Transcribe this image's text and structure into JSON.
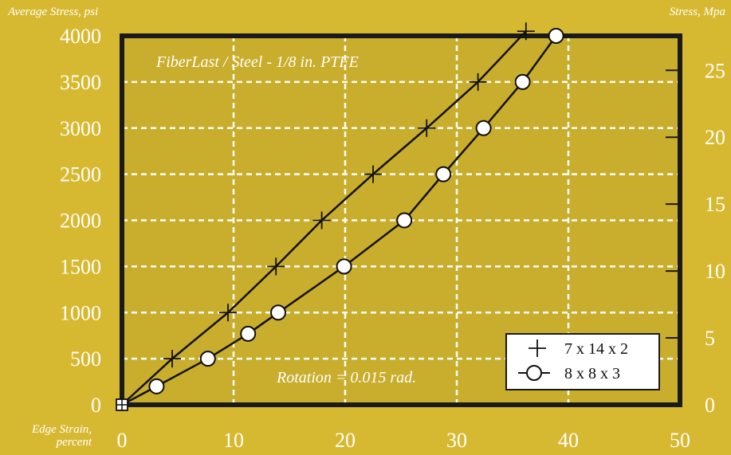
{
  "chart_data": {
    "type": "line",
    "title": "",
    "annotation_top": "FiberLast / Steel - 1/8 in. PTFE",
    "annotation_bottom": "Rotation = 0.015 rad.",
    "ylabel_left": "Average Stress, psi",
    "ylabel_right": "Stress, Mpa",
    "xlabel_line1": "Edge Strain,",
    "xlabel_line2": "percent",
    "xlim": [
      0,
      50
    ],
    "ylim": [
      0,
      4000
    ],
    "x_ticks": [
      "0",
      "10",
      "20",
      "30",
      "40",
      "50"
    ],
    "y_ticks_left": [
      "0",
      "500",
      "1000",
      "1500",
      "2000",
      "2500",
      "3000",
      "3500",
      "4000"
    ],
    "y_ticks_right": [
      "0",
      "5",
      "10",
      "15",
      "20",
      "25"
    ],
    "grid": true,
    "legend_position": "bottom-right",
    "series": [
      {
        "name": "7 x 14 x 2",
        "marker": "plus",
        "points": [
          [
            0,
            0
          ],
          [
            4.5,
            500
          ],
          [
            9.5,
            1000
          ],
          [
            13.8,
            1500
          ],
          [
            17.9,
            2000
          ],
          [
            22.5,
            2500
          ],
          [
            27.3,
            3000
          ],
          [
            31.9,
            3500
          ],
          [
            36.2,
            4050
          ]
        ]
      },
      {
        "name": "8 x 8 x 3",
        "marker": "circle",
        "points": [
          [
            0,
            0
          ],
          [
            3.1,
            200
          ],
          [
            7.7,
            500
          ],
          [
            11.3,
            770
          ],
          [
            14.0,
            1000
          ],
          [
            19.9,
            1500
          ],
          [
            25.3,
            2000
          ],
          [
            28.8,
            2500
          ],
          [
            32.4,
            3000
          ],
          [
            35.9,
            3500
          ],
          [
            38.9,
            4000
          ]
        ]
      }
    ],
    "colors": {
      "background": "#d7b931",
      "plot_area": "#c9ad2c",
      "frame": "#1a1a1a",
      "grid": "#ffffff",
      "line": "#111111",
      "axis_text": "#ffffff",
      "legend_bg": "#ffffff"
    }
  }
}
